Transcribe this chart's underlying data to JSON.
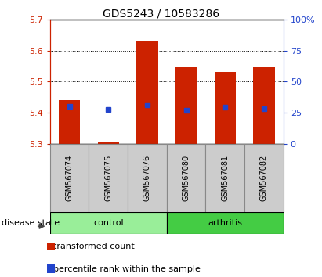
{
  "title": "GDS5243 / 10583286",
  "samples": [
    "GSM567074",
    "GSM567075",
    "GSM567076",
    "GSM567080",
    "GSM567081",
    "GSM567082"
  ],
  "bar_values": [
    5.44,
    5.305,
    5.63,
    5.55,
    5.53,
    5.55
  ],
  "blue_dot_values": [
    5.42,
    5.41,
    5.425,
    5.408,
    5.418,
    5.412
  ],
  "bar_color": "#cc2200",
  "blue_color": "#2244cc",
  "y_min": 5.3,
  "y_max": 5.7,
  "y_ticks": [
    5.3,
    5.4,
    5.5,
    5.6,
    5.7
  ],
  "right_ticks": [
    0,
    25,
    50,
    75,
    100
  ],
  "right_tick_labels": [
    "0",
    "25",
    "50",
    "75",
    "100%"
  ],
  "groups": [
    {
      "label": "control",
      "indices": [
        0,
        1,
        2
      ],
      "color": "#99ee99"
    },
    {
      "label": "arthritis",
      "indices": [
        3,
        4,
        5
      ],
      "color": "#44cc44"
    }
  ],
  "disease_state_label": "disease state",
  "legend_items": [
    {
      "label": "transformed count",
      "color": "#cc2200"
    },
    {
      "label": "percentile rank within the sample",
      "color": "#2244cc"
    }
  ],
  "title_fontsize": 10,
  "tick_label_fontsize": 8,
  "sample_label_fontsize": 7,
  "group_label_fontsize": 8,
  "legend_fontsize": 8
}
